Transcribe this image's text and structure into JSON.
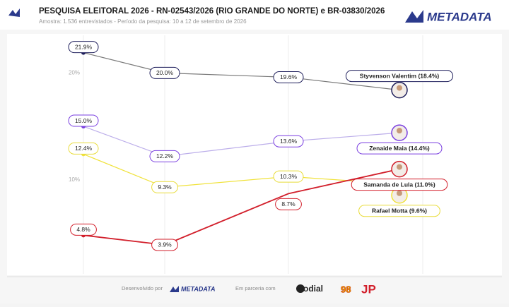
{
  "header": {
    "title": "PESQUISA ELEITORAL 2026 - RN-02543/2026 (RIO GRANDE DO NORTE) e BR-03830/2026",
    "subtitle": "Amostra: 1.536 entrevistados - Período da pesquisa: 10 a 12 de setembro de 2026",
    "logo": "METADATA"
  },
  "footer": {
    "developed": "Desenvolvido por",
    "logo": "METADATA",
    "partner": "Em parceria com",
    "partner_name": "odial",
    "badge": "98",
    "jp": "JP"
  },
  "chart_data": {
    "type": "line",
    "categories": [
      null,
      null,
      null,
      null
    ],
    "ylim": [
      0,
      23
    ],
    "yticks": [
      {
        "value": 10,
        "label": "10%"
      },
      {
        "value": 20,
        "label": "20%"
      }
    ],
    "series": [
      {
        "color": "#7a7a7a",
        "marker": "#1f1f5c",
        "values": [
          21.9,
          20.0,
          19.6,
          18.4
        ],
        "value_labels": [
          "21.9%",
          "20.0%",
          "19.6%",
          "Styvenson Valentim (18.4%)"
        ]
      },
      {
        "color": "#bcaeea",
        "marker": "#7a3fe0",
        "values": [
          15.0,
          12.2,
          13.6,
          14.4
        ],
        "value_labels": [
          "15.0%",
          "12.2%",
          "13.6%",
          "Zenaide Maia (14.4%)"
        ]
      },
      {
        "color": "#f0e23a",
        "marker": "#f0e23a",
        "values": [
          12.4,
          9.3,
          10.3,
          9.6
        ],
        "value_labels": [
          "12.4%",
          "9.3%",
          "10.3%",
          "Rafael Motta (9.6%)"
        ]
      },
      {
        "color": "#d21f2b",
        "marker": "#d21f2b",
        "values": [
          4.8,
          3.9,
          8.7,
          11.0
        ],
        "value_labels": [
          "4.8%",
          "3.9%",
          "8.7%",
          "Samanda de Lula (11.0%)"
        ]
      }
    ]
  }
}
